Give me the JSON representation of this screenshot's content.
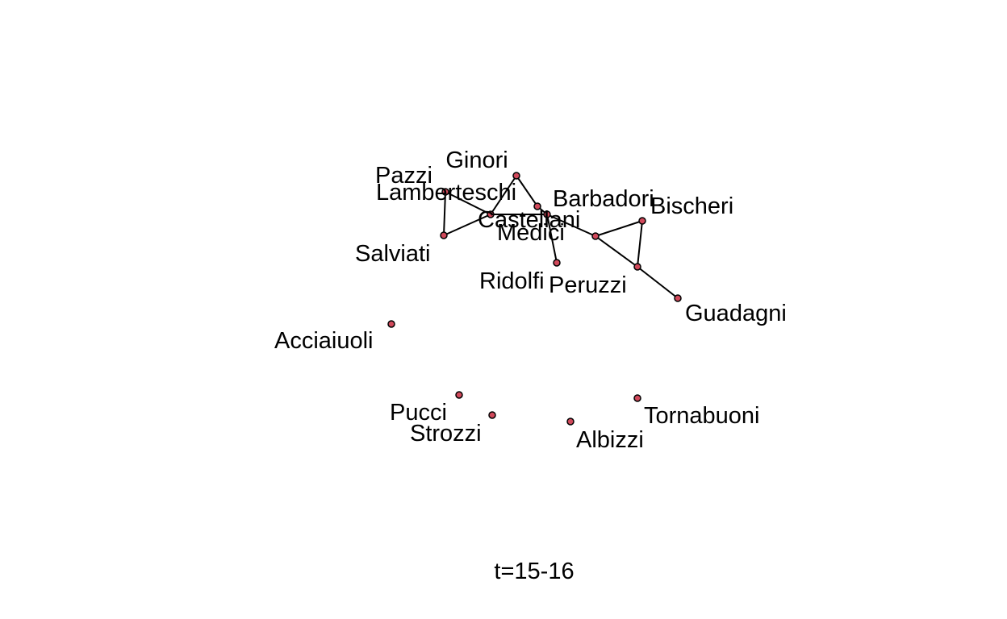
{
  "caption": "t=15-16",
  "colors": {
    "node_fill": "#d1495b",
    "node_stroke": "#000000",
    "edge": "#000000",
    "label": "#000000",
    "background": "#ffffff"
  },
  "nodes": [
    {
      "id": "ginori",
      "label": "Ginori"
    },
    {
      "id": "pazzi",
      "label": "Pazzi"
    },
    {
      "id": "lamberteschi",
      "label": "Lamberteschi"
    },
    {
      "id": "castellani",
      "label": "Castellani"
    },
    {
      "id": "barbadori",
      "label": "Barbadori"
    },
    {
      "id": "medici",
      "label": "Medici"
    },
    {
      "id": "bischeri",
      "label": "Bischeri"
    },
    {
      "id": "salviati",
      "label": "Salviati"
    },
    {
      "id": "ridolfi",
      "label": "Ridolfi"
    },
    {
      "id": "peruzzi",
      "label": "Peruzzi"
    },
    {
      "id": "guadagni",
      "label": "Guadagni"
    },
    {
      "id": "acciaiuoli",
      "label": "Acciaiuoli"
    },
    {
      "id": "pucci",
      "label": "Pucci"
    },
    {
      "id": "strozzi",
      "label": "Strozzi"
    },
    {
      "id": "albizzi",
      "label": "Albizzi"
    },
    {
      "id": "tornabuoni",
      "label": "Tornabuoni"
    }
  ],
  "edges": [
    [
      "lamberteschi",
      "salviati"
    ],
    [
      "lamberteschi",
      "castellani"
    ],
    [
      "salviati",
      "castellani"
    ],
    [
      "castellani",
      "ginori"
    ],
    [
      "castellani",
      "medici"
    ],
    [
      "ginori",
      "barbadori"
    ],
    [
      "barbadori",
      "medici"
    ],
    [
      "medici",
      "ridolfi"
    ],
    [
      "medici",
      "peruzzi"
    ],
    [
      "peruzzi",
      "bischeri"
    ],
    [
      "peruzzi",
      "guadagni"
    ],
    [
      "bischeri",
      "guadagni"
    ]
  ]
}
